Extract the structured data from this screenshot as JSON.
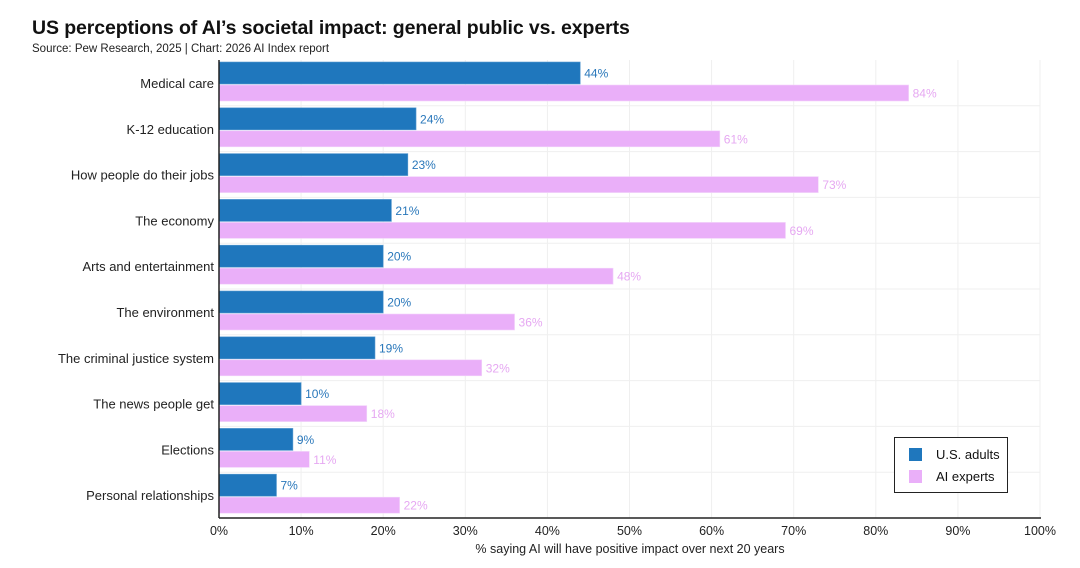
{
  "chart_data": {
    "type": "bar",
    "orientation": "horizontal",
    "title": "US perceptions of AI’s societal impact: general public vs. experts",
    "subtitle": "Source: Pew Research, 2025 | Chart: 2026 AI Index report",
    "xlabel": "% saying AI will have positive impact over next 20 years",
    "ylabel": "",
    "xlim": [
      0,
      100
    ],
    "xticks": [
      "0%",
      "10%",
      "20%",
      "30%",
      "40%",
      "50%",
      "60%",
      "70%",
      "80%",
      "90%",
      "100%"
    ],
    "grid": true,
    "legend_position": "bottom-right",
    "categories": [
      "Medical care",
      "K-12 education",
      "How people do their jobs",
      "The economy",
      "Arts and entertainment",
      "The environment",
      "The criminal justice system",
      "The news people get",
      "Elections",
      "Personal relationships"
    ],
    "series": [
      {
        "name": "U.S. adults",
        "color": "#1f77bd",
        "label_color": "#2a78bb",
        "values": [
          44,
          24,
          23,
          21,
          20,
          20,
          19,
          10,
          9,
          7
        ],
        "labels": [
          "44%",
          "24%",
          "23%",
          "21%",
          "20%",
          "20%",
          "19%",
          "10%",
          "9%",
          "7%"
        ]
      },
      {
        "name": "AI experts",
        "color": "#eaaff9",
        "label_color": "#e6a8f2",
        "values": [
          84,
          61,
          73,
          69,
          48,
          36,
          32,
          18,
          11,
          22
        ],
        "labels": [
          "84%",
          "61%",
          "73%",
          "69%",
          "48%",
          "36%",
          "32%",
          "18%",
          "11%",
          "22%"
        ]
      }
    ]
  }
}
